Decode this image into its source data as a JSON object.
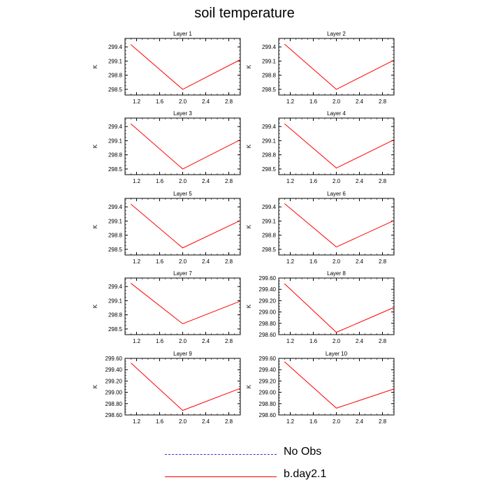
{
  "title": "soil temperature",
  "legend": [
    {
      "label": "No Obs",
      "color": "#3333cc",
      "style": "dashed"
    },
    {
      "label": "b.day2.1",
      "color": "#ff0000",
      "style": "solid"
    }
  ],
  "chart_data": [
    {
      "type": "line",
      "title": "Layer 1",
      "ylabel": "K",
      "xlabel": "",
      "xlim": [
        1,
        3
      ],
      "xticks": [
        "1.2",
        "1.6",
        "2.0",
        "2.4",
        "2.8"
      ],
      "ylim": [
        298.38,
        299.58
      ],
      "yticks": [
        "298.5",
        "298.8",
        "299.1",
        "299.4"
      ],
      "series": [
        {
          "name": "b.day2.1",
          "x": [
            1.1,
            2.0,
            3.0
          ],
          "y": [
            299.45,
            298.5,
            299.13
          ]
        }
      ]
    },
    {
      "type": "line",
      "title": "Layer 2",
      "ylabel": "K",
      "xlabel": "",
      "xlim": [
        1,
        3
      ],
      "xticks": [
        "1.2",
        "1.6",
        "2.0",
        "2.4",
        "2.8"
      ],
      "ylim": [
        298.38,
        299.58
      ],
      "yticks": [
        "298.5",
        "298.8",
        "299.1",
        "299.4"
      ],
      "series": [
        {
          "name": "b.day2.1",
          "x": [
            1.1,
            2.0,
            3.0
          ],
          "y": [
            299.46,
            298.5,
            299.12
          ]
        }
      ]
    },
    {
      "type": "line",
      "title": "Layer 3",
      "ylabel": "K",
      "xlabel": "",
      "xlim": [
        1,
        3
      ],
      "xticks": [
        "1.2",
        "1.6",
        "2.0",
        "2.4",
        "2.8"
      ],
      "ylim": [
        298.38,
        299.58
      ],
      "yticks": [
        "298.5",
        "298.8",
        "299.1",
        "299.4"
      ],
      "series": [
        {
          "name": "b.day2.1",
          "x": [
            1.1,
            2.0,
            3.0
          ],
          "y": [
            299.46,
            298.5,
            299.12
          ]
        }
      ]
    },
    {
      "type": "line",
      "title": "Layer 4",
      "ylabel": "K",
      "xlabel": "",
      "xlim": [
        1,
        3
      ],
      "xticks": [
        "1.2",
        "1.6",
        "2.0",
        "2.4",
        "2.8"
      ],
      "ylim": [
        298.38,
        299.58
      ],
      "yticks": [
        "298.5",
        "298.8",
        "299.1",
        "299.4"
      ],
      "series": [
        {
          "name": "b.day2.1",
          "x": [
            1.1,
            2.0,
            3.0
          ],
          "y": [
            299.46,
            298.52,
            299.12
          ]
        }
      ]
    },
    {
      "type": "line",
      "title": "Layer 5",
      "ylabel": "K",
      "xlabel": "",
      "xlim": [
        1,
        3
      ],
      "xticks": [
        "1.2",
        "1.6",
        "2.0",
        "2.4",
        "2.8"
      ],
      "ylim": [
        298.38,
        299.58
      ],
      "yticks": [
        "298.5",
        "298.8",
        "299.1",
        "299.4"
      ],
      "series": [
        {
          "name": "b.day2.1",
          "x": [
            1.1,
            2.0,
            3.0
          ],
          "y": [
            299.46,
            298.53,
            299.11
          ]
        }
      ]
    },
    {
      "type": "line",
      "title": "Layer 6",
      "ylabel": "K",
      "xlabel": "",
      "xlim": [
        1,
        3
      ],
      "xticks": [
        "1.2",
        "1.6",
        "2.0",
        "2.4",
        "2.8"
      ],
      "ylim": [
        298.38,
        299.58
      ],
      "yticks": [
        "298.5",
        "298.8",
        "299.1",
        "299.4"
      ],
      "series": [
        {
          "name": "b.day2.1",
          "x": [
            1.1,
            2.0,
            3.0
          ],
          "y": [
            299.47,
            298.55,
            299.11
          ]
        }
      ]
    },
    {
      "type": "line",
      "title": "Layer 7",
      "ylabel": "K",
      "xlabel": "",
      "xlim": [
        1,
        3
      ],
      "xticks": [
        "1.2",
        "1.6",
        "2.0",
        "2.4",
        "2.8"
      ],
      "ylim": [
        298.38,
        299.58
      ],
      "yticks": [
        "298.5",
        "298.8",
        "299.1",
        "299.4"
      ],
      "series": [
        {
          "name": "b.day2.1",
          "x": [
            1.1,
            2.0,
            3.0
          ],
          "y": [
            299.47,
            298.61,
            299.09
          ]
        }
      ]
    },
    {
      "type": "line",
      "title": "Layer 8",
      "ylabel": "K",
      "xlabel": "",
      "xlim": [
        1,
        3
      ],
      "xticks": [
        "1.2",
        "1.6",
        "2.0",
        "2.4",
        "2.8"
      ],
      "ylim": [
        298.6,
        299.6
      ],
      "yticks": [
        "298.60",
        "298.80",
        "299.00",
        "299.20",
        "299.40",
        "299.60"
      ],
      "series": [
        {
          "name": "b.day2.1",
          "x": [
            1.1,
            2.0,
            3.0
          ],
          "y": [
            299.5,
            298.64,
            299.08
          ]
        }
      ]
    },
    {
      "type": "line",
      "title": "Layer 9",
      "ylabel": "K",
      "xlabel": "",
      "xlim": [
        1,
        3
      ],
      "xticks": [
        "1.2",
        "1.6",
        "2.0",
        "2.4",
        "2.8"
      ],
      "ylim": [
        298.6,
        299.6
      ],
      "yticks": [
        "298.60",
        "298.80",
        "299.00",
        "299.20",
        "299.40",
        "299.60"
      ],
      "series": [
        {
          "name": "b.day2.1",
          "x": [
            1.1,
            2.0,
            3.0
          ],
          "y": [
            299.52,
            298.68,
            299.07
          ]
        }
      ]
    },
    {
      "type": "line",
      "title": "Layer 10",
      "ylabel": "K",
      "xlabel": "",
      "xlim": [
        1,
        3
      ],
      "xticks": [
        "1.2",
        "1.6",
        "2.0",
        "2.4",
        "2.8"
      ],
      "ylim": [
        298.6,
        299.6
      ],
      "yticks": [
        "298.60",
        "298.80",
        "299.00",
        "299.20",
        "299.40",
        "299.60"
      ],
      "series": [
        {
          "name": "b.day2.1",
          "x": [
            1.1,
            2.0,
            3.0
          ],
          "y": [
            299.54,
            298.72,
            299.06
          ]
        }
      ]
    }
  ]
}
